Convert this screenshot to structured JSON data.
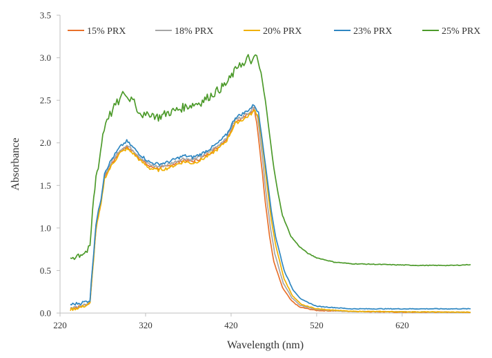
{
  "chart_data": {
    "type": "line",
    "title": "",
    "xlabel": "Wavelength (nm)",
    "ylabel": "Absorbance",
    "xlim": [
      220,
      700
    ],
    "ylim": [
      0,
      3.5
    ],
    "x_ticks": [
      "220",
      "320",
      "420",
      "520",
      "620"
    ],
    "y_ticks": [
      "0.0",
      "0.5",
      "1.0",
      "1.5",
      "2.0",
      "2.5",
      "3.0",
      "3.5"
    ],
    "grid": false,
    "legend_position": "top",
    "series": [
      {
        "name": "15% PRX",
        "color": "#E8702A",
        "points": [
          [
            232,
            0.05
          ],
          [
            245,
            0.08
          ],
          [
            255,
            0.12
          ],
          [
            258,
            0.5
          ],
          [
            262,
            1.0
          ],
          [
            268,
            1.3
          ],
          [
            272,
            1.6
          ],
          [
            280,
            1.75
          ],
          [
            290,
            1.9
          ],
          [
            298,
            1.95
          ],
          [
            305,
            1.9
          ],
          [
            315,
            1.8
          ],
          [
            325,
            1.72
          ],
          [
            335,
            1.7
          ],
          [
            345,
            1.72
          ],
          [
            355,
            1.76
          ],
          [
            365,
            1.8
          ],
          [
            375,
            1.78
          ],
          [
            385,
            1.82
          ],
          [
            395,
            1.88
          ],
          [
            405,
            1.95
          ],
          [
            415,
            2.05
          ],
          [
            425,
            2.25
          ],
          [
            435,
            2.3
          ],
          [
            442,
            2.35
          ],
          [
            447,
            2.4
          ],
          [
            450,
            2.25
          ],
          [
            455,
            1.8
          ],
          [
            460,
            1.3
          ],
          [
            465,
            0.9
          ],
          [
            470,
            0.6
          ],
          [
            480,
            0.3
          ],
          [
            490,
            0.15
          ],
          [
            500,
            0.07
          ],
          [
            520,
            0.03
          ],
          [
            560,
            0.02
          ],
          [
            620,
            0.01
          ],
          [
            700,
            0.01
          ]
        ]
      },
      {
        "name": "18% PRX",
        "color": "#A5A5A5",
        "points": [
          [
            232,
            0.06
          ],
          [
            245,
            0.09
          ],
          [
            255,
            0.13
          ],
          [
            258,
            0.52
          ],
          [
            262,
            1.02
          ],
          [
            268,
            1.32
          ],
          [
            272,
            1.62
          ],
          [
            280,
            1.77
          ],
          [
            290,
            1.92
          ],
          [
            298,
            1.97
          ],
          [
            305,
            1.92
          ],
          [
            315,
            1.82
          ],
          [
            325,
            1.74
          ],
          [
            335,
            1.72
          ],
          [
            345,
            1.74
          ],
          [
            355,
            1.78
          ],
          [
            365,
            1.82
          ],
          [
            375,
            1.8
          ],
          [
            385,
            1.84
          ],
          [
            395,
            1.9
          ],
          [
            405,
            1.97
          ],
          [
            415,
            2.07
          ],
          [
            425,
            2.27
          ],
          [
            435,
            2.32
          ],
          [
            442,
            2.37
          ],
          [
            447,
            2.42
          ],
          [
            451,
            2.3
          ],
          [
            456,
            1.9
          ],
          [
            461,
            1.4
          ],
          [
            466,
            1.0
          ],
          [
            471,
            0.7
          ],
          [
            481,
            0.35
          ],
          [
            491,
            0.18
          ],
          [
            501,
            0.09
          ],
          [
            520,
            0.04
          ],
          [
            560,
            0.02
          ],
          [
            620,
            0.015
          ],
          [
            700,
            0.01
          ]
        ]
      },
      {
        "name": "20% PRX",
        "color": "#F0B000",
        "points": [
          [
            232,
            0.04
          ],
          [
            245,
            0.07
          ],
          [
            255,
            0.11
          ],
          [
            258,
            0.48
          ],
          [
            262,
            0.98
          ],
          [
            268,
            1.28
          ],
          [
            272,
            1.58
          ],
          [
            280,
            1.73
          ],
          [
            290,
            1.88
          ],
          [
            298,
            1.93
          ],
          [
            305,
            1.88
          ],
          [
            315,
            1.78
          ],
          [
            325,
            1.7
          ],
          [
            335,
            1.68
          ],
          [
            345,
            1.7
          ],
          [
            355,
            1.74
          ],
          [
            365,
            1.78
          ],
          [
            375,
            1.76
          ],
          [
            385,
            1.8
          ],
          [
            395,
            1.86
          ],
          [
            405,
            1.93
          ],
          [
            415,
            2.03
          ],
          [
            425,
            2.23
          ],
          [
            435,
            2.28
          ],
          [
            442,
            2.33
          ],
          [
            448,
            2.38
          ],
          [
            452,
            2.3
          ],
          [
            457,
            1.95
          ],
          [
            462,
            1.5
          ],
          [
            467,
            1.1
          ],
          [
            472,
            0.8
          ],
          [
            482,
            0.4
          ],
          [
            492,
            0.2
          ],
          [
            502,
            0.1
          ],
          [
            520,
            0.05
          ],
          [
            560,
            0.02
          ],
          [
            620,
            0.015
          ],
          [
            700,
            0.01
          ]
        ]
      },
      {
        "name": "23% PRX",
        "color": "#2E86C1",
        "points": [
          [
            232,
            0.1
          ],
          [
            245,
            0.12
          ],
          [
            255,
            0.15
          ],
          [
            258,
            0.55
          ],
          [
            262,
            1.05
          ],
          [
            268,
            1.35
          ],
          [
            272,
            1.65
          ],
          [
            280,
            1.8
          ],
          [
            290,
            1.95
          ],
          [
            298,
            2.02
          ],
          [
            305,
            1.95
          ],
          [
            315,
            1.85
          ],
          [
            325,
            1.77
          ],
          [
            335,
            1.75
          ],
          [
            345,
            1.77
          ],
          [
            355,
            1.81
          ],
          [
            365,
            1.85
          ],
          [
            375,
            1.83
          ],
          [
            385,
            1.87
          ],
          [
            395,
            1.93
          ],
          [
            405,
            2.0
          ],
          [
            415,
            2.1
          ],
          [
            425,
            2.3
          ],
          [
            435,
            2.35
          ],
          [
            442,
            2.4
          ],
          [
            447,
            2.45
          ],
          [
            452,
            2.35
          ],
          [
            457,
            2.0
          ],
          [
            462,
            1.6
          ],
          [
            467,
            1.2
          ],
          [
            472,
            0.9
          ],
          [
            482,
            0.5
          ],
          [
            492,
            0.28
          ],
          [
            502,
            0.16
          ],
          [
            520,
            0.08
          ],
          [
            560,
            0.05
          ],
          [
            620,
            0.05
          ],
          [
            700,
            0.05
          ]
        ]
      },
      {
        "name": "25% PRX",
        "color": "#4C9A2A",
        "points": [
          [
            232,
            0.65
          ],
          [
            240,
            0.68
          ],
          [
            250,
            0.72
          ],
          [
            255,
            0.75
          ],
          [
            258,
            1.2
          ],
          [
            262,
            1.6
          ],
          [
            266,
            1.8
          ],
          [
            270,
            2.1
          ],
          [
            275,
            2.3
          ],
          [
            280,
            2.35
          ],
          [
            285,
            2.45
          ],
          [
            290,
            2.5
          ],
          [
            295,
            2.6
          ],
          [
            300,
            2.5
          ],
          [
            305,
            2.55
          ],
          [
            310,
            2.4
          ],
          [
            315,
            2.35
          ],
          [
            320,
            2.3
          ],
          [
            325,
            2.35
          ],
          [
            335,
            2.3
          ],
          [
            345,
            2.35
          ],
          [
            355,
            2.38
          ],
          [
            365,
            2.42
          ],
          [
            375,
            2.45
          ],
          [
            385,
            2.48
          ],
          [
            395,
            2.55
          ],
          [
            405,
            2.62
          ],
          [
            415,
            2.7
          ],
          [
            425,
            2.85
          ],
          [
            430,
            2.95
          ],
          [
            435,
            2.9
          ],
          [
            440,
            3.0
          ],
          [
            445,
            2.95
          ],
          [
            450,
            3.02
          ],
          [
            455,
            2.8
          ],
          [
            460,
            2.5
          ],
          [
            465,
            2.1
          ],
          [
            470,
            1.7
          ],
          [
            475,
            1.4
          ],
          [
            480,
            1.15
          ],
          [
            490,
            0.9
          ],
          [
            500,
            0.78
          ],
          [
            510,
            0.7
          ],
          [
            520,
            0.65
          ],
          [
            540,
            0.6
          ],
          [
            560,
            0.58
          ],
          [
            600,
            0.57
          ],
          [
            640,
            0.56
          ],
          [
            680,
            0.56
          ],
          [
            700,
            0.57
          ]
        ]
      }
    ]
  }
}
